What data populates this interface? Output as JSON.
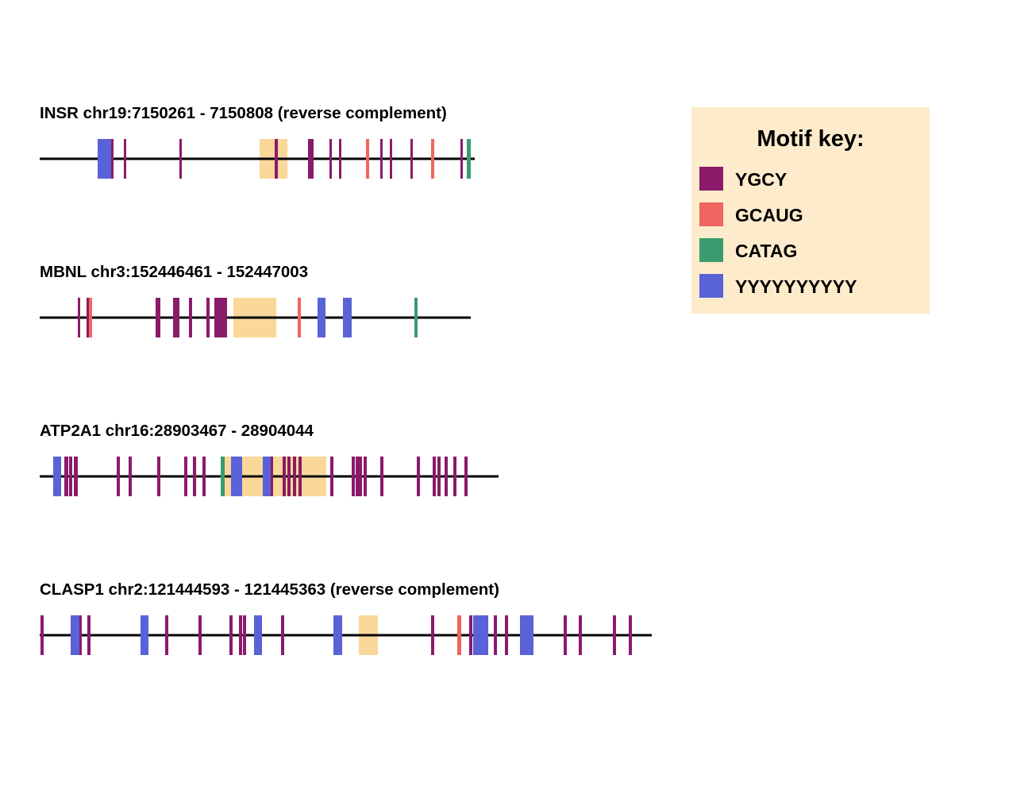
{
  "colors": {
    "YGCY": "#8b1a6b",
    "GCAUG": "#f0655f",
    "CATAG": "#3a9b6e",
    "YYYYYYYYYY": "#5a62d8",
    "exon": "#fad89a",
    "legend_bg": "#fdebcc",
    "line": "#000000"
  },
  "legend": {
    "title": "Motif key:",
    "items": [
      {
        "motif": "YGCY",
        "label": "YGCY"
      },
      {
        "motif": "GCAUG",
        "label": "GCAUG"
      },
      {
        "motif": "CATAG",
        "label": "CATAG"
      },
      {
        "motif": "YYYYYYYYYY",
        "label": "YYYYYYYYYY"
      }
    ]
  },
  "tracks": [
    {
      "title": "INSR chr19:7150261 - 7150808 (reverse complement)",
      "length": 548,
      "exons": [
        [
          277,
          312
        ]
      ],
      "motifs": [
        {
          "type": "YYYYYYYYYY",
          "start": 73,
          "end": 91
        },
        {
          "type": "YGCY",
          "start": 90,
          "end": 93
        },
        {
          "type": "YGCY",
          "start": 106,
          "end": 109
        },
        {
          "type": "YGCY",
          "start": 176,
          "end": 179
        },
        {
          "type": "YGCY",
          "start": 296,
          "end": 300
        },
        {
          "type": "YGCY",
          "start": 338,
          "end": 345
        },
        {
          "type": "YGCY",
          "start": 365,
          "end": 368
        },
        {
          "type": "YGCY",
          "start": 377,
          "end": 380
        },
        {
          "type": "GCAUG",
          "start": 411,
          "end": 415
        },
        {
          "type": "YGCY",
          "start": 429,
          "end": 432
        },
        {
          "type": "YGCY",
          "start": 441,
          "end": 444
        },
        {
          "type": "YGCY",
          "start": 467,
          "end": 470
        },
        {
          "type": "GCAUG",
          "start": 493,
          "end": 497
        },
        {
          "type": "YGCY",
          "start": 530,
          "end": 533
        },
        {
          "type": "CATAG",
          "start": 538,
          "end": 543
        }
      ]
    },
    {
      "title": "MBNL chr3:152446461 - 152447003",
      "length": 543,
      "exons": [
        [
          244,
          298
        ]
      ],
      "motifs": [
        {
          "type": "YGCY",
          "start": 48,
          "end": 51
        },
        {
          "type": "YGCY",
          "start": 59,
          "end": 62
        },
        {
          "type": "GCAUG",
          "start": 62,
          "end": 66
        },
        {
          "type": "YGCY",
          "start": 146,
          "end": 152
        },
        {
          "type": "YGCY",
          "start": 168,
          "end": 176
        },
        {
          "type": "YGCY",
          "start": 188,
          "end": 192
        },
        {
          "type": "YGCY",
          "start": 210,
          "end": 214
        },
        {
          "type": "YGCY",
          "start": 220,
          "end": 236
        },
        {
          "type": "GCAUG",
          "start": 325,
          "end": 329
        },
        {
          "type": "YYYYYYYYYY",
          "start": 350,
          "end": 360
        },
        {
          "type": "YYYYYYYYYY",
          "start": 382,
          "end": 393
        },
        {
          "type": "CATAG",
          "start": 472,
          "end": 476
        }
      ]
    },
    {
      "title": "ATP2A1 chr16:28903467 - 28904044",
      "length": 578,
      "exons": [
        [
          233,
          361
        ]
      ],
      "motifs": [
        {
          "type": "YYYYYYYYYY",
          "start": 17,
          "end": 27
        },
        {
          "type": "YGCY",
          "start": 31,
          "end": 36
        },
        {
          "type": "YGCY",
          "start": 37,
          "end": 41
        },
        {
          "type": "YGCY",
          "start": 43,
          "end": 48
        },
        {
          "type": "YGCY",
          "start": 97,
          "end": 101
        },
        {
          "type": "YGCY",
          "start": 112,
          "end": 116
        },
        {
          "type": "YGCY",
          "start": 148,
          "end": 152
        },
        {
          "type": "YGCY",
          "start": 182,
          "end": 186
        },
        {
          "type": "YGCY",
          "start": 193,
          "end": 197
        },
        {
          "type": "YGCY",
          "start": 205,
          "end": 209
        },
        {
          "type": "CATAG",
          "start": 228,
          "end": 233
        },
        {
          "type": "YYYYYYYYYY",
          "start": 241,
          "end": 255
        },
        {
          "type": "YYYYYYYYYY",
          "start": 281,
          "end": 292
        },
        {
          "type": "YGCY",
          "start": 291,
          "end": 294
        },
        {
          "type": "YGCY",
          "start": 306,
          "end": 310
        },
        {
          "type": "YGCY",
          "start": 312,
          "end": 316
        },
        {
          "type": "YGCY",
          "start": 319,
          "end": 323
        },
        {
          "type": "YGCY",
          "start": 326,
          "end": 330
        },
        {
          "type": "YGCY",
          "start": 366,
          "end": 370
        },
        {
          "type": "YGCY",
          "start": 393,
          "end": 397
        },
        {
          "type": "YGCY",
          "start": 398,
          "end": 406
        },
        {
          "type": "YGCY",
          "start": 408,
          "end": 412
        },
        {
          "type": "YGCY",
          "start": 429,
          "end": 433
        },
        {
          "type": "YGCY",
          "start": 475,
          "end": 479
        },
        {
          "type": "YGCY",
          "start": 495,
          "end": 499
        },
        {
          "type": "YGCY",
          "start": 501,
          "end": 505
        },
        {
          "type": "YGCY",
          "start": 510,
          "end": 514
        },
        {
          "type": "YGCY",
          "start": 521,
          "end": 525
        },
        {
          "type": "YGCY",
          "start": 535,
          "end": 539
        }
      ]
    },
    {
      "title": "CLASP1 chr2:121444593 - 121445363 (reverse complement)",
      "length": 771,
      "exons": [
        [
          402,
          426
        ]
      ],
      "motifs": [
        {
          "type": "YGCY",
          "start": 1,
          "end": 5
        },
        {
          "type": "YYYYYYYYYY",
          "start": 39,
          "end": 52
        },
        {
          "type": "YGCY",
          "start": 50,
          "end": 53
        },
        {
          "type": "YGCY",
          "start": 60,
          "end": 64
        },
        {
          "type": "YYYYYYYYYY",
          "start": 127,
          "end": 137
        },
        {
          "type": "YGCY",
          "start": 158,
          "end": 162
        },
        {
          "type": "YGCY",
          "start": 200,
          "end": 204
        },
        {
          "type": "YGCY",
          "start": 239,
          "end": 243
        },
        {
          "type": "YGCY",
          "start": 251,
          "end": 255
        },
        {
          "type": "YGCY",
          "start": 256,
          "end": 260
        },
        {
          "type": "YYYYYYYYYY",
          "start": 270,
          "end": 280
        },
        {
          "type": "YGCY",
          "start": 304,
          "end": 308
        },
        {
          "type": "YYYYYYYYYY",
          "start": 370,
          "end": 381
        },
        {
          "type": "YGCY",
          "start": 493,
          "end": 497
        },
        {
          "type": "GCAUG",
          "start": 526,
          "end": 531
        },
        {
          "type": "YGCY",
          "start": 541,
          "end": 545
        },
        {
          "type": "YYYYYYYYYY",
          "start": 546,
          "end": 565
        },
        {
          "type": "YGCY",
          "start": 572,
          "end": 576
        },
        {
          "type": "YGCY",
          "start": 586,
          "end": 590
        },
        {
          "type": "YYYYYYYYYY",
          "start": 605,
          "end": 622
        },
        {
          "type": "YGCY",
          "start": 660,
          "end": 664
        },
        {
          "type": "YGCY",
          "start": 679,
          "end": 683
        },
        {
          "type": "YGCY",
          "start": 722,
          "end": 726
        },
        {
          "type": "YGCY",
          "start": 742,
          "end": 746
        }
      ]
    }
  ]
}
